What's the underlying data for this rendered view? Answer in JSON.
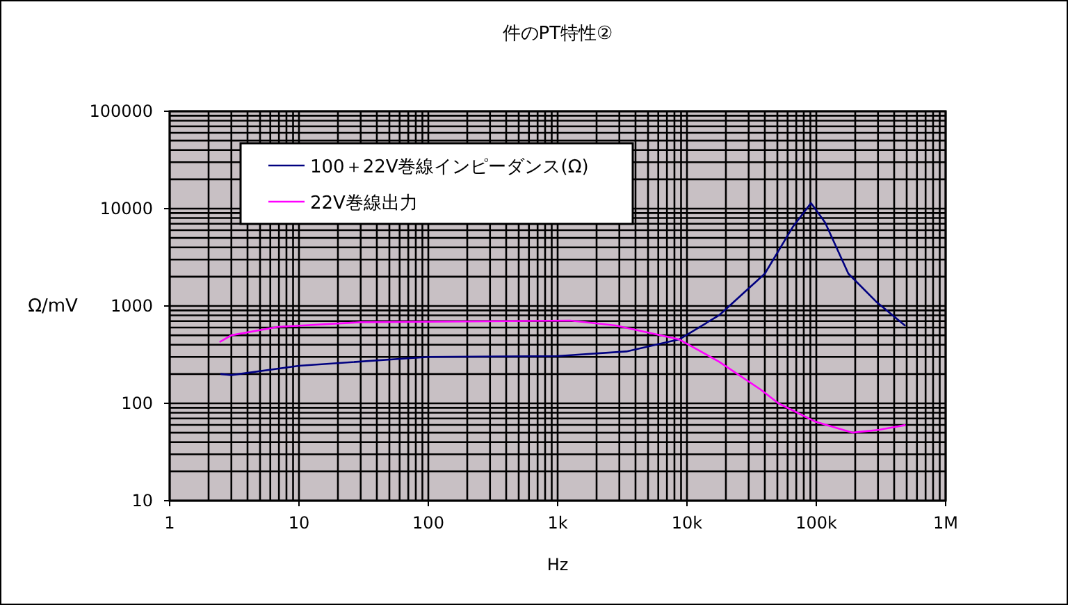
{
  "chart_data": {
    "type": "line",
    "title": "件のPT特性②",
    "xlabel": "Hz",
    "ylabel": "Ω/mV",
    "log": "xy",
    "grid": true,
    "legend": "top left",
    "xlim": [
      1,
      1000000
    ],
    "ylim": [
      10,
      100000
    ],
    "xticks": [
      1,
      10,
      100,
      {
        "value": 1000,
        "label": "1k"
      },
      {
        "value": 10000,
        "label": "10k"
      },
      {
        "value": 100000,
        "label": "100k"
      },
      {
        "value": 1000000,
        "label": "1M"
      }
    ],
    "yticks": [
      10,
      100,
      1000,
      10000,
      100000
    ],
    "series": [
      {
        "name": "100＋22V巻線インピーダンス(Ω)",
        "color": "#000080",
        "x": [
          2.5,
          3,
          10,
          100,
          1000,
          3400,
          8700,
          17700,
          40000,
          65700,
          91000,
          117000,
          177000,
          290000,
          484000
        ],
        "values": [
          200,
          195,
          243,
          300,
          306,
          341,
          454,
          802,
          2150,
          6460,
          11400,
          7200,
          2150,
          1110,
          631
        ]
      },
      {
        "name": "22V巻線出力",
        "color": "#ff00ff",
        "x": [
          2.46,
          3,
          6.9,
          30,
          1250,
          2800,
          8700,
          17700,
          37000,
          51000,
          99000,
          191000,
          309000,
          484000
        ],
        "values": [
          429,
          500,
          611,
          681,
          708,
          631,
          454,
          268,
          139,
          100,
          64.6,
          50,
          53.6,
          59.7
        ]
      }
    ]
  }
}
